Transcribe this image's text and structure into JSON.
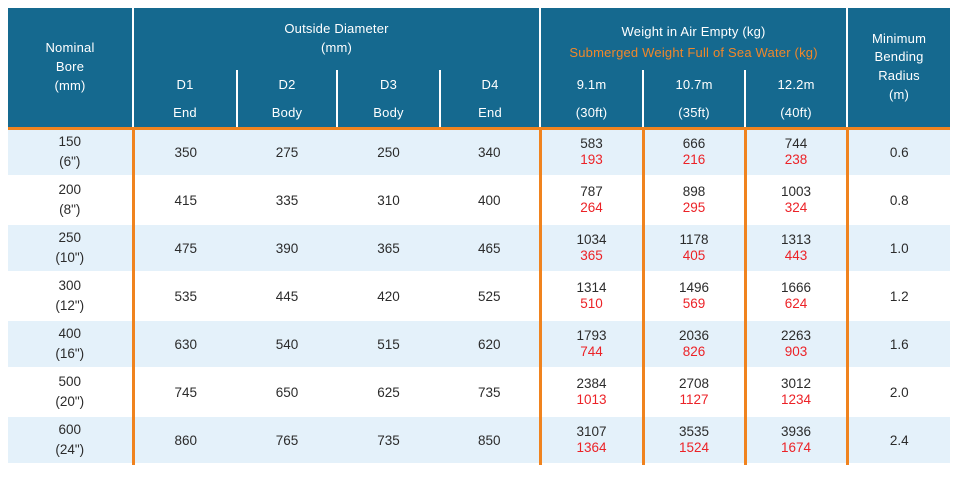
{
  "colors": {
    "header_bg": "#15698F",
    "header_text": "#FFFFFF",
    "orange": "#F0831E",
    "orange_text": "#F0872A",
    "red": "#EC2227",
    "row_alt": "#E4F1FA",
    "body_text": "#2B2B2B"
  },
  "table": {
    "header": {
      "nominal_bore": "Nominal\nBore\n(mm)",
      "outside_diameter": "Outside Diameter\n(mm)",
      "weight_air": "Weight in Air Empty (kg)",
      "weight_submerged": "Submerged Weight Full of Sea Water (kg)",
      "min_bending_radius": "Minimum\nBending\nRadius\n(m)",
      "od_columns": [
        {
          "code": "D1",
          "position": "End"
        },
        {
          "code": "D2",
          "position": "Body"
        },
        {
          "code": "D3",
          "position": "Body"
        },
        {
          "code": "D4",
          "position": "End"
        }
      ],
      "lengths": [
        {
          "meters": "9.1m",
          "feet": "(30ft)"
        },
        {
          "meters": "10.7m",
          "feet": "(35ft)"
        },
        {
          "meters": "12.2m",
          "feet": "(40ft)"
        }
      ]
    },
    "rows": [
      {
        "bore": "150\n(6\")",
        "d1": "350",
        "d2": "275",
        "d3": "250",
        "d4": "340",
        "w1_air": "583",
        "w1_sub": "193",
        "w2_air": "666",
        "w2_sub": "216",
        "w3_air": "744",
        "w3_sub": "238",
        "radius": "0.6"
      },
      {
        "bore": "200\n(8\")",
        "d1": "415",
        "d2": "335",
        "d3": "310",
        "d4": "400",
        "w1_air": "787",
        "w1_sub": "264",
        "w2_air": "898",
        "w2_sub": "295",
        "w3_air": "1003",
        "w3_sub": "324",
        "radius": "0.8"
      },
      {
        "bore": "250\n(10\")",
        "d1": "475",
        "d2": "390",
        "d3": "365",
        "d4": "465",
        "w1_air": "1034",
        "w1_sub": "365",
        "w2_air": "1178",
        "w2_sub": "405",
        "w3_air": "1313",
        "w3_sub": "443",
        "radius": "1.0"
      },
      {
        "bore": "300\n(12\")",
        "d1": "535",
        "d2": "445",
        "d3": "420",
        "d4": "525",
        "w1_air": "1314",
        "w1_sub": "510",
        "w2_air": "1496",
        "w2_sub": "569",
        "w3_air": "1666",
        "w3_sub": "624",
        "radius": "1.2"
      },
      {
        "bore": "400\n(16\")",
        "d1": "630",
        "d2": "540",
        "d3": "515",
        "d4": "620",
        "w1_air": "1793",
        "w1_sub": "744",
        "w2_air": "2036",
        "w2_sub": "826",
        "w3_air": "2263",
        "w3_sub": "903",
        "radius": "1.6"
      },
      {
        "bore": "500\n(20\")",
        "d1": "745",
        "d2": "650",
        "d3": "625",
        "d4": "735",
        "w1_air": "2384",
        "w1_sub": "1013",
        "w2_air": "2708",
        "w2_sub": "1127",
        "w3_air": "3012",
        "w3_sub": "1234",
        "radius": "2.0"
      },
      {
        "bore": "600\n(24\")",
        "d1": "860",
        "d2": "765",
        "d3": "735",
        "d4": "850",
        "w1_air": "3107",
        "w1_sub": "1364",
        "w2_air": "3535",
        "w2_sub": "1524",
        "w3_air": "3936",
        "w3_sub": "1674",
        "radius": "2.4"
      }
    ]
  }
}
